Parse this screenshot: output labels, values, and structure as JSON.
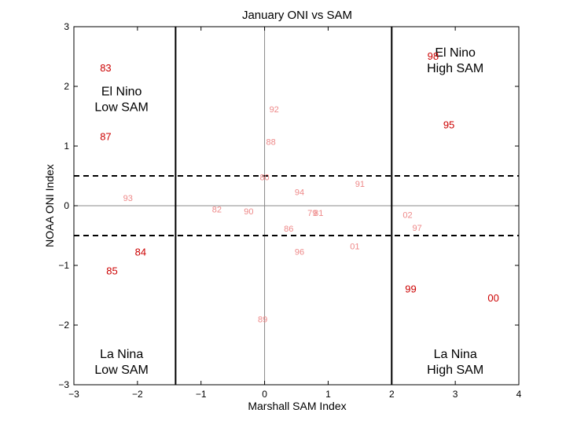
{
  "chart_data": {
    "type": "scatter",
    "title": "January ONI vs SAM",
    "xlabel": "Marshall SAM Index",
    "ylabel": "NOAA ONI Index",
    "xlim": [
      -3,
      4
    ],
    "ylim": [
      -3,
      3
    ],
    "xticks": [
      -3,
      -2,
      -1,
      0,
      1,
      2,
      3,
      4
    ],
    "yticks": [
      -3,
      -2,
      -1,
      0,
      1,
      2,
      3
    ],
    "xtick_labels": [
      "−3",
      "−2",
      "−1",
      "0",
      "1",
      "2",
      "3",
      "4"
    ],
    "ytick_labels": [
      "−3",
      "−2",
      "−1",
      "0",
      "1",
      "2",
      "3"
    ],
    "thresholds": {
      "sam_vertical_lines": [
        -1.4,
        2.0
      ],
      "oni_dashed_lines": [
        0.5,
        -0.5
      ]
    },
    "quadrant_labels": [
      {
        "id": "el-nino-low-sam",
        "lines": [
          "El Nino",
          "Low SAM"
        ],
        "x": -2.25,
        "y": 1.85
      },
      {
        "id": "el-nino-high-sam",
        "lines": [
          "El Nino",
          "High SAM"
        ],
        "x": 3.0,
        "y": 2.5
      },
      {
        "id": "la-nina-low-sam",
        "lines": [
          "La Nina",
          "Low SAM"
        ],
        "x": -2.25,
        "y": -2.55
      },
      {
        "id": "la-nina-high-sam",
        "lines": [
          "La Nina",
          "High SAM"
        ],
        "x": 3.0,
        "y": -2.55
      }
    ],
    "colors": {
      "highlight": "#cc0000",
      "faded": "#ee8888",
      "axis": "#000000",
      "zero_line": "#888888"
    },
    "points": [
      {
        "label": "83",
        "x": -2.5,
        "y": 2.3,
        "highlight": true
      },
      {
        "label": "87",
        "x": -2.5,
        "y": 1.15,
        "highlight": true
      },
      {
        "label": "84",
        "x": -1.95,
        "y": -0.78,
        "highlight": true
      },
      {
        "label": "85",
        "x": -2.4,
        "y": -1.1,
        "highlight": true
      },
      {
        "label": "98",
        "x": 2.65,
        "y": 2.5,
        "highlight": true
      },
      {
        "label": "95",
        "x": 2.9,
        "y": 1.35,
        "highlight": true
      },
      {
        "label": "99",
        "x": 2.3,
        "y": -1.4,
        "highlight": true
      },
      {
        "label": "00",
        "x": 3.6,
        "y": -1.55,
        "highlight": true
      },
      {
        "label": "92",
        "x": 0.15,
        "y": 1.62,
        "highlight": false
      },
      {
        "label": "88",
        "x": 0.1,
        "y": 1.07,
        "highlight": false
      },
      {
        "label": "80",
        "x": 0.0,
        "y": 0.48,
        "highlight": false
      },
      {
        "label": "91",
        "x": 1.5,
        "y": 0.37,
        "highlight": false
      },
      {
        "label": "94",
        "x": 0.55,
        "y": 0.23,
        "highlight": false
      },
      {
        "label": "93",
        "x": -2.15,
        "y": 0.13,
        "highlight": false
      },
      {
        "label": "82",
        "x": -0.75,
        "y": -0.06,
        "highlight": false
      },
      {
        "label": "90",
        "x": -0.25,
        "y": -0.09,
        "highlight": false
      },
      {
        "label": "79",
        "x": 0.75,
        "y": -0.12,
        "highlight": false
      },
      {
        "label": "81",
        "x": 0.85,
        "y": -0.12,
        "highlight": false
      },
      {
        "label": "86",
        "x": 0.38,
        "y": -0.38,
        "highlight": false
      },
      {
        "label": "96",
        "x": 0.55,
        "y": -0.77,
        "highlight": false
      },
      {
        "label": "01",
        "x": 1.42,
        "y": -0.68,
        "highlight": false
      },
      {
        "label": "02",
        "x": 2.25,
        "y": -0.15,
        "highlight": false
      },
      {
        "label": "97",
        "x": 2.4,
        "y": -0.37,
        "highlight": false
      },
      {
        "label": "89",
        "x": -0.03,
        "y": -1.9,
        "highlight": false
      }
    ]
  }
}
